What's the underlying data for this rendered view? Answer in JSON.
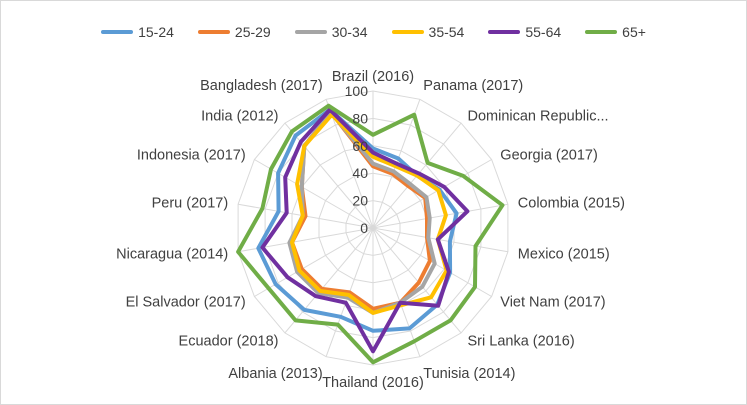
{
  "chart_data": {
    "type": "radar",
    "categories": [
      "Brazil (2016)",
      "Panama (2017)",
      "Dominican Republic...",
      "Georgia (2017)",
      "Colombia (2015)",
      "Mexico (2015)",
      "Viet Nam (2017)",
      "Sri Lanka (2016)",
      "Tunisia (2014)",
      "Thailand (2016)",
      "Albania (2013)",
      "Ecuador (2018)",
      "El Salvador (2017)",
      "Nicaragua (2014)",
      "Peru (2017)",
      "Indonesia (2017)",
      "India (2012)",
      "Bangladesh (2017)"
    ],
    "rlim": [
      0,
      100
    ],
    "rticks": [
      "0",
      "20",
      "40",
      "60",
      "80",
      "100"
    ],
    "grid": true,
    "legend_position": "top",
    "series": [
      {
        "name": "15-24",
        "color": "#5b9bd5",
        "values": [
          58,
          54,
          50,
          56,
          62,
          57,
          65,
          73,
          78,
          75,
          69,
          78,
          82,
          85,
          70,
          80,
          88,
          92
        ]
      },
      {
        "name": "25-29",
        "color": "#ed7d31",
        "values": [
          45,
          42,
          40,
          44,
          40,
          40,
          48,
          52,
          58,
          59,
          50,
          58,
          60,
          60,
          50,
          60,
          78,
          90
        ]
      },
      {
        "name": "30-34",
        "color": "#a5a5a5",
        "values": [
          47,
          44,
          42,
          45,
          42,
          41,
          52,
          56,
          58,
          62,
          54,
          62,
          64,
          62,
          52,
          60,
          78,
          90
        ]
      },
      {
        "name": "35-54",
        "color": "#ffc000",
        "values": [
          52,
          48,
          50,
          55,
          54,
          48,
          62,
          66,
          60,
          62,
          52,
          60,
          62,
          60,
          52,
          64,
          78,
          88
        ]
      },
      {
        "name": "55-64",
        "color": "#7030a0",
        "values": [
          55,
          50,
          52,
          60,
          70,
          48,
          64,
          74,
          58,
          90,
          58,
          65,
          72,
          82,
          64,
          74,
          82,
          92
        ]
      },
      {
        "name": "65+",
        "color": "#70ad47",
        "values": [
          68,
          88,
          62,
          76,
          96,
          76,
          86,
          88,
          88,
          98,
          75,
          88,
          88,
          100,
          82,
          86,
          92,
          95
        ]
      }
    ]
  }
}
